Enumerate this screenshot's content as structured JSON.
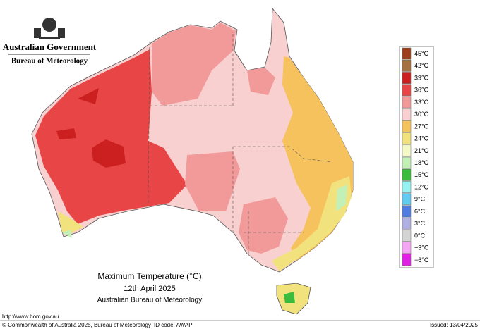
{
  "header": {
    "government": "Australian Government",
    "agency": "Bureau of Meteorology"
  },
  "map": {
    "title": "Maximum Temperature (°C)",
    "date": "12th April 2025",
    "source": "Australian Bureau of Meteorology"
  },
  "legend": {
    "items": [
      {
        "label": "45°C",
        "color": "#9c3f1a"
      },
      {
        "label": "42°C",
        "color": "#a8703e"
      },
      {
        "label": "39°C",
        "color": "#cc1f1f"
      },
      {
        "label": "36°C",
        "color": "#e84646"
      },
      {
        "label": "33°C",
        "color": "#f29a9a"
      },
      {
        "label": "30°C",
        "color": "#f8d0d0"
      },
      {
        "label": "27°C",
        "color": "#f5c25e"
      },
      {
        "label": "24°C",
        "color": "#f2e27e"
      },
      {
        "label": "21°C",
        "color": "#f4f8c6"
      },
      {
        "label": "18°C",
        "color": "#c2f0b6"
      },
      {
        "label": "15°C",
        "color": "#3cbc3c"
      },
      {
        "label": "12°C",
        "color": "#96f2f0"
      },
      {
        "label": "9°C",
        "color": "#62ccf0"
      },
      {
        "label": "6°C",
        "color": "#4f7ee0"
      },
      {
        "label": "3°C",
        "color": "#b0b0e2"
      },
      {
        "label": "0°C",
        "color": "#d4d4d4"
      },
      {
        "label": "−3°C",
        "color": "#f4a6f4"
      },
      {
        "label": "−6°C",
        "color": "#e020e0"
      }
    ]
  },
  "footer": {
    "url": "http://www.bom.gov.au",
    "copyright": "© Commonwealth of Australia 2025, Bureau of Meteorology",
    "id_code": "ID code: AWAP",
    "issued": "Issued: 13/04/2025"
  }
}
